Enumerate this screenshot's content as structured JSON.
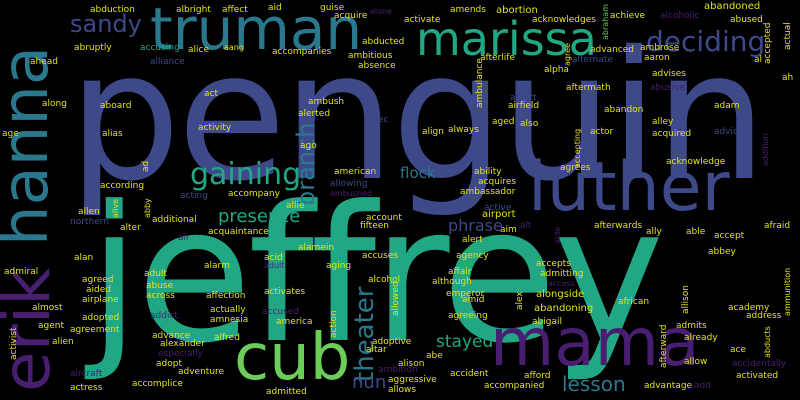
{
  "palette": {
    "background": "#000000",
    "yellow": "#e3e31a",
    "green": "#6ccd5a",
    "teal": "#22a785",
    "blue": "#3e4989",
    "purple": "#481f70",
    "cyan": "#2a788e"
  },
  "words": {
    "penguin": "penguin",
    "jeffrey": "jeffrey",
    "truman": "truman",
    "marissa": "marissa",
    "luther": "luther",
    "mama": "mama",
    "cub": "cub",
    "erik": "erik",
    "hanna": "hanna",
    "deciding": "deciding",
    "sandy": "sandy",
    "gaining": "gaining",
    "branch": "branch",
    "theater": "theater",
    "presence": "presence",
    "lesson": "lesson",
    "stayed": "stayed",
    "nun": "nun",
    "phrase": "phrase",
    "flock": "flock",
    "abduction": "abduction",
    "albright": "albright",
    "affect": "affect",
    "aid": "aid",
    "guise": "guise",
    "alone": "alone",
    "amends": "amends",
    "abortion": "abortion",
    "abraham": "abraham",
    "abandoned": "abandoned",
    "abruptly": "abruptly",
    "accusing": "accusing",
    "alice": "alice",
    "aang": "aang",
    "accompanies": "accompanies",
    "ahead": "ahead",
    "alliance": "alliance",
    "ambitious": "ambitious",
    "absence": "absence",
    "acquire": "acquire",
    "abducted": "abducted",
    "activate": "activate",
    "acknowledges": "acknowledges",
    "achieve": "achieve",
    "alcoholic": "alcoholic",
    "ambrose": "ambrose",
    "advanced": "advanced",
    "aaron": "aaron",
    "al": "al",
    "alternate": "alternate",
    "afterlife": "afterlife",
    "agree": "agree",
    "ambulance": "ambulance",
    "alpha": "alpha",
    "advises": "advises",
    "abusive": "abusive",
    "abused": "abused",
    "accepted": "accepted",
    "actual": "actual",
    "along": "along",
    "act": "act",
    "aboard": "aboard",
    "ambush": "ambush",
    "alerted": "alerted",
    "alec": "alec",
    "aftermath": "aftermath",
    "albert": "albert",
    "airfield": "airfield",
    "abandon": "abandon",
    "adam": "adam",
    "ah": "ah",
    "age": "age",
    "alias": "alias",
    "activity": "activity",
    "ago": "ago",
    "align": "align",
    "always": "always",
    "aged": "aged",
    "also": "also",
    "accepting": "accepting",
    "actor": "actor",
    "alley": "alley",
    "acquired": "acquired",
    "advice": "advice",
    "addition": "addition",
    "ad": "ad",
    "according": "according",
    "american": "american",
    "allowing": "allowing",
    "ambushed": "ambushed",
    "ability": "ability",
    "acquires": "acquires",
    "ambassador": "ambassador",
    "agrees": "agrees",
    "acknowledge": "acknowledge",
    "acting": "acting",
    "accompany": "accompany",
    "alive": "alive",
    "abby": "abby",
    "allen": "allen",
    "northern": "northern",
    "alter": "alter",
    "additional": "additional",
    "air": "air",
    "acquaintance": "acquaintance",
    "allie": "allie",
    "account": "account",
    "fifteen": "fifteen",
    "active": "active",
    "airport": "airport",
    "aim": "aim",
    "alt": "alt",
    "alert": "alert",
    "aide": "aide",
    "afterwards": "afterwards",
    "ally": "ally",
    "able": "able",
    "accept": "accept",
    "afraid": "afraid",
    "alan": "alan",
    "acid": "acid",
    "adult": "adult",
    "alamein": "alamein",
    "aging": "aging",
    "accuses": "accuses",
    "agency": "agency",
    "abbey": "abbey",
    "admiral": "admiral",
    "agreed": "agreed",
    "aided": "aided",
    "airplane": "airplane",
    "abuse": "abuse",
    "across": "across",
    "alarm": "alarm",
    "activates": "activates",
    "alcohol": "alcohol",
    "affair": "affair",
    "although": "although",
    "accepts": "accepts",
    "admitting": "admitting",
    "access": "access",
    "alex": "alex",
    "emperor": "emperor",
    "amid": "amid",
    "alongside": "alongside",
    "abandoning": "abandoning",
    "african": "african",
    "allison": "allison",
    "ammunition": "ammunition",
    "almost": "almost",
    "affection": "affection",
    "actually": "actually",
    "addict": "addict",
    "amnesia": "amnesia",
    "accused": "accused",
    "america": "america",
    "allowed": "allowed",
    "agreeing": "agreeing",
    "academy": "academy",
    "address": "address",
    "activist": "activist",
    "agent": "agent",
    "adopted": "adopted",
    "agreement": "agreement",
    "alien": "alien",
    "advance": "advance",
    "alexander": "alexander",
    "especially": "especially",
    "alfred": "alfred",
    "action": "action",
    "adoptive": "adoptive",
    "altar": "altar",
    "abigail": "abigail",
    "afterward": "afterward",
    "admits": "admits",
    "already": "already",
    "abducts": "abducts",
    "ace": "ace",
    "accidentally": "accidentally",
    "allow": "allow",
    "adopt": "adopt",
    "ambition": "ambition",
    "abe": "abe",
    "alison": "alison",
    "aircraft": "aircraft",
    "adventure": "adventure",
    "accomplice": "accomplice",
    "aggressive": "aggressive",
    "accident": "accident",
    "afford": "afford",
    "activated": "activated",
    "actress": "actress",
    "admitted": "admitted",
    "allows": "allows",
    "accompanied": "accompanied",
    "advantage": "advantage",
    "add": "add"
  }
}
